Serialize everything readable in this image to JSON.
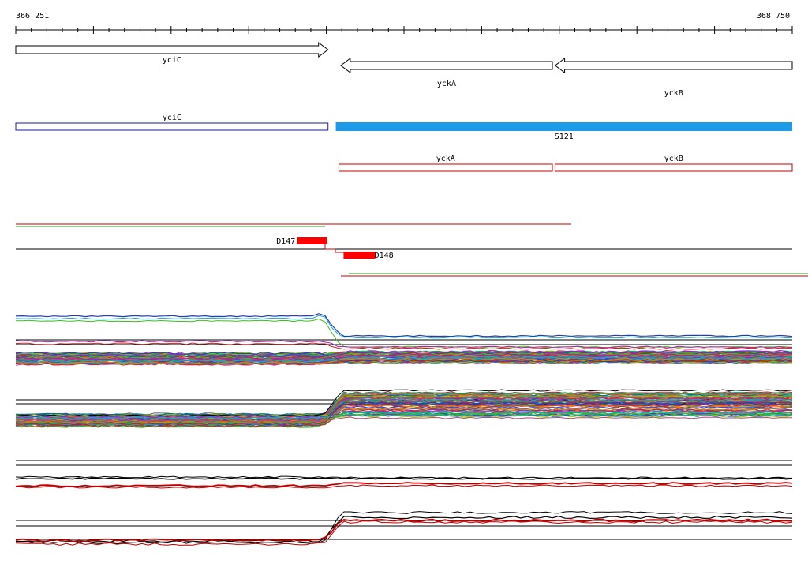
{
  "ruler": {
    "start_label": "366 251",
    "end_label": "368 750",
    "start": 366251,
    "end": 368750
  },
  "genes": [
    {
      "name": "yciC",
      "start": 366251,
      "end": 367256,
      "strand": "+"
    },
    {
      "name": "yckA",
      "start": 367297,
      "end": 367978,
      "strand": "-"
    },
    {
      "name": "yckB",
      "start": 367987,
      "end": 368750,
      "strand": "-"
    }
  ],
  "transcription_units": [
    {
      "name": "yciC",
      "start": 366251,
      "end": 367256,
      "color": "#1a1a9c",
      "filled": false
    },
    {
      "name": "yckA",
      "start": 367291,
      "end": 367978,
      "color": "#c00000",
      "filled": false
    },
    {
      "name": "yckB",
      "start": 367987,
      "end": 368750,
      "color": "#c00000",
      "filled": false
    }
  ],
  "segments": [
    {
      "name": "S121",
      "start": 367281,
      "end": 368750,
      "color": "#1e9be8"
    }
  ],
  "drops": [
    {
      "name": "D147",
      "start": 367156,
      "end": 367253,
      "color": "#ff0000"
    },
    {
      "name": "D148",
      "start": 367306,
      "end": 367408,
      "color": "#ff0000"
    }
  ],
  "colors": {
    "gene_outline": "#000000",
    "red_track": "#c00000",
    "green_track": "#2aa02a"
  }
}
